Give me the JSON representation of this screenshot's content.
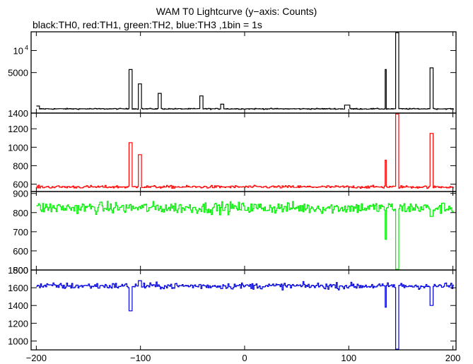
{
  "chart_data": {
    "type": "line",
    "title": "WAM T0 Lightcurve (y−axis: Counts)",
    "subtitle": "black:TH0, red:TH1, green:TH2, blue:TH3 ,1bin = 1s",
    "x_ticks": [
      "−200",
      "−100",
      "0",
      "100",
      "200"
    ],
    "xlim": [
      -205,
      203
    ],
    "panels": [
      {
        "id": "TH0",
        "color": "#000000",
        "scale": "log",
        "ylim": [
          1400,
          18000
        ],
        "y_ticks": [
          {
            "value": 10000,
            "label": "10",
            "sup": "4"
          },
          {
            "value": 5000,
            "label": "5000"
          },
          {
            "value": 1400,
            "label": "1400"
          }
        ],
        "baseline": 1600,
        "noise": 25,
        "events": [
          {
            "x": -200,
            "peak": 1750,
            "width": 3
          },
          {
            "x": -110,
            "peak": 5500,
            "width": 2
          },
          {
            "x": -101,
            "peak": 3500,
            "width": 2
          },
          {
            "x": -82,
            "peak": 2600,
            "width": 2
          },
          {
            "x": -42,
            "peak": 2400,
            "width": 2
          },
          {
            "x": -22,
            "peak": 1850,
            "width": 2
          },
          {
            "x": 98,
            "peak": 1800,
            "width": 3
          },
          {
            "x": 135,
            "peak": 5500,
            "width": 1
          },
          {
            "x": 146,
            "peak": 17500,
            "width": 2
          },
          {
            "x": 179,
            "peak": 5800,
            "width": 2
          }
        ]
      },
      {
        "id": "TH1",
        "color": "#ff0000",
        "scale": "linear",
        "ylim": [
          520,
          1370
        ],
        "y_ticks": [
          {
            "value": 1200,
            "label": "1200"
          },
          {
            "value": 1000,
            "label": "1000"
          },
          {
            "value": 800,
            "label": "800"
          },
          {
            "value": 600,
            "label": "600"
          }
        ],
        "baseline": 570,
        "noise": 15,
        "events": [
          {
            "x": -110,
            "peak": 1050,
            "width": 2
          },
          {
            "x": -101,
            "peak": 920,
            "width": 2
          },
          {
            "x": 135,
            "peak": 860,
            "width": 1
          },
          {
            "x": 146,
            "peak": 1360,
            "width": 2
          },
          {
            "x": 179,
            "peak": 1150,
            "width": 2
          }
        ]
      },
      {
        "id": "TH2",
        "color": "#00ee00",
        "scale": "linear",
        "ylim": [
          500,
          910
        ],
        "y_ticks": [
          {
            "value": 900,
            "label": "900"
          },
          {
            "value": 800,
            "label": "800"
          },
          {
            "value": 700,
            "label": "700"
          },
          {
            "value": 600,
            "label": "600"
          },
          {
            "value": 500,
            "label": "500"
          }
        ],
        "baseline": 825,
        "noise": 30,
        "events": [
          {
            "x": 135,
            "peak": 660,
            "width": 1
          },
          {
            "x": 146,
            "peak": 500,
            "width": 2
          },
          {
            "x": 179,
            "peak": 780,
            "width": 2
          }
        ]
      },
      {
        "id": "TH3",
        "color": "#0000dd",
        "scale": "linear",
        "ylim": [
          900,
          1800
        ],
        "y_ticks": [
          {
            "value": 1800,
            "label": "1800"
          },
          {
            "value": 1600,
            "label": "1600"
          },
          {
            "value": 1400,
            "label": "1400"
          },
          {
            "value": 1200,
            "label": "1200"
          },
          {
            "value": 1000,
            "label": "1000"
          }
        ],
        "baseline": 1620,
        "noise": 35,
        "events": [
          {
            "x": -110,
            "peak": 1340,
            "width": 2
          },
          {
            "x": -101,
            "peak": 1680,
            "width": 2
          },
          {
            "x": 135,
            "peak": 1380,
            "width": 1
          },
          {
            "x": 146,
            "peak": 880,
            "width": 2
          },
          {
            "x": 179,
            "peak": 1400,
            "width": 2
          }
        ]
      }
    ]
  }
}
